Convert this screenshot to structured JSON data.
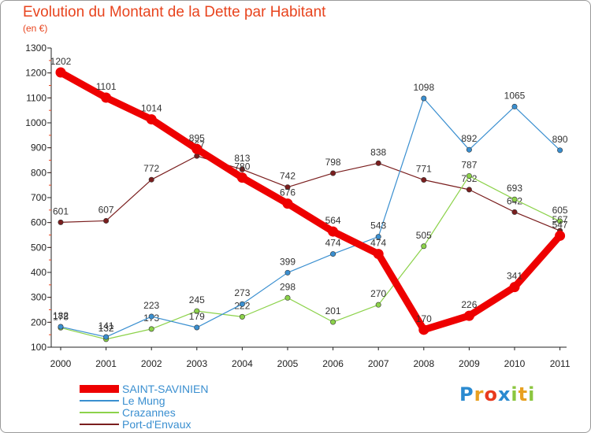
{
  "title": "Evolution du Montant de la Dette par Habitant",
  "subtitle": "(en €)",
  "logo": "Proxiti",
  "chart_data": {
    "type": "line",
    "x": [
      "2000",
      "2001",
      "2002",
      "2003",
      "2004",
      "2005",
      "2006",
      "2007",
      "2008",
      "2009",
      "2010",
      "2011"
    ],
    "ylim": [
      100,
      1300
    ],
    "yticks": [
      100,
      200,
      300,
      400,
      500,
      600,
      700,
      800,
      900,
      1000,
      1100,
      1200,
      1300
    ],
    "grid": false,
    "legend_position": "bottom-left",
    "series": [
      {
        "name": "Port-d'Envaux",
        "color": "#7a1e1e",
        "values": [
          601,
          607,
          772,
          867,
          813,
          742,
          798,
          838,
          771,
          732,
          642,
          567
        ]
      },
      {
        "name": "Crazannes",
        "color": "#8cd24a",
        "values": [
          178,
          132,
          173,
          245,
          222,
          298,
          201,
          270,
          505,
          787,
          693,
          605
        ]
      },
      {
        "name": "Le Mung",
        "color": "#3a8fd0",
        "values": [
          182,
          141,
          223,
          179,
          273,
          399,
          474,
          543,
          1098,
          892,
          1065,
          890
        ]
      },
      {
        "name": "SAINT-SAVINIEN",
        "color": "#ee0000",
        "values": [
          1202,
          1101,
          1014,
          895,
          780,
          676,
          564,
          474,
          170,
          226,
          341,
          547
        ]
      }
    ],
    "legend": [
      "SAINT-SAVINIEN",
      "Le Mung",
      "Crazannes",
      "Port-d'Envaux"
    ]
  }
}
